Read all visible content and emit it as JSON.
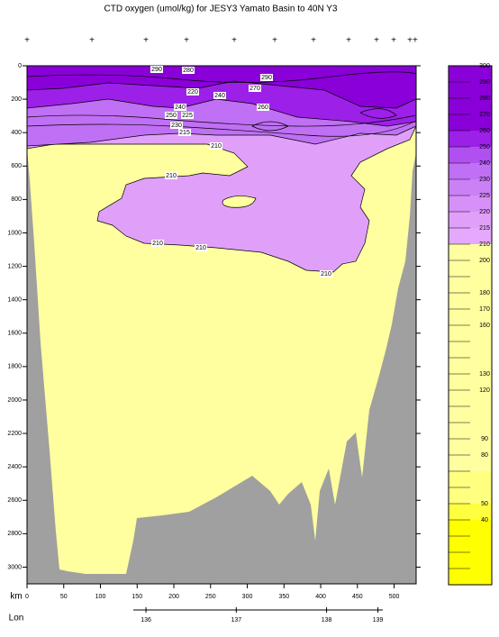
{
  "chart_data": {
    "type": "contour-section",
    "title": "CTD oxygen (umol/kg) for JESY3 Yamato Basin to 40N Y3",
    "x_label": "km",
    "lon_label": "Lon",
    "xlim": [
      0,
      530
    ],
    "xticks": [
      0,
      50,
      100,
      150,
      200,
      250,
      300,
      350,
      400,
      450,
      500
    ],
    "ylim": [
      0,
      3100
    ],
    "yticks": [
      0,
      200,
      400,
      600,
      800,
      1000,
      1200,
      1400,
      1600,
      1800,
      2000,
      2200,
      2400,
      2600,
      2800,
      3000
    ],
    "lon_ticks": [
      {
        "lon": 136,
        "km": 162
      },
      {
        "lon": 137,
        "km": 285
      },
      {
        "lon": 138,
        "km": 408
      },
      {
        "lon": 139,
        "km": 478
      }
    ],
    "colorbar_ticks": [
      300,
      290,
      280,
      270,
      260,
      250,
      240,
      230,
      225,
      220,
      215,
      210,
      200,
      null,
      180,
      170,
      160,
      null,
      null,
      130,
      120,
      null,
      null,
      90,
      80,
      null,
      null,
      50,
      40,
      null,
      null,
      null,
      null
    ],
    "colorbar_colors": [
      "#8a00d8",
      "#8a00d8",
      "#8a00d8",
      "#8a00d8",
      "#9c20e8",
      "#b050f0",
      "#c070f4",
      "#cc80f6",
      "#d690f8",
      "#e0a0fa",
      "#e4a8fc",
      "#ffffa0",
      "#ffffa0",
      "#ffffa0",
      "#ffffa0",
      "#ffffa0",
      "#ffffa0",
      "#ffffa0",
      "#ffffa0",
      "#ffffa0",
      "#ffffa0",
      "#ffffa0",
      "#ffffa0",
      "#ffffa0",
      "#ffffa0",
      "#ffff80",
      "#ffff80",
      "#ffff40",
      "#ffff00",
      "#ffff00",
      "#ffff00",
      "#ffff00"
    ],
    "contour_labels": [
      210,
      210,
      210,
      210,
      210,
      215,
      220,
      225,
      230,
      240,
      240,
      250,
      260,
      270,
      280,
      290,
      290
    ]
  }
}
